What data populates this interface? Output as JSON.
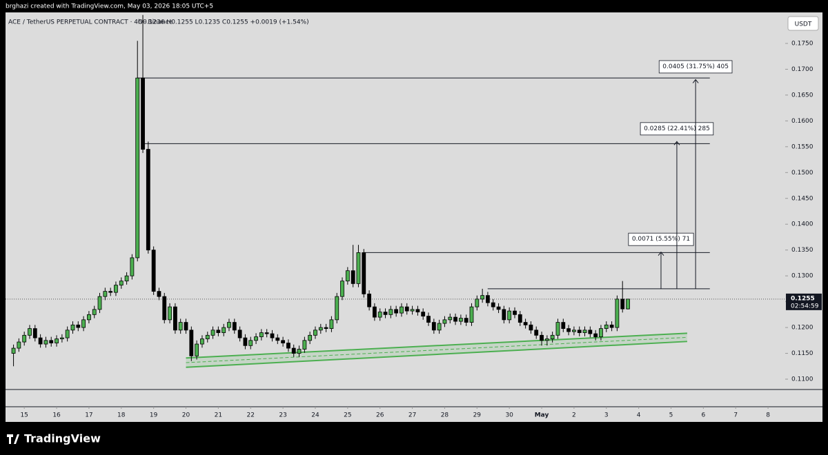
{
  "attribution": "brghazi created with TradingView.com, May 03, 2026 18:05 UTC+5",
  "logo": "TradingView",
  "chart_data": {
    "type": "candlestick",
    "title": "ACE / TetherUS PERPETUAL CONTRACT · 4h · Binance",
    "ohlc_text": "O0.1236 H0.1255 L0.1235 C0.1255 +0.0019 (+1.54%)",
    "currency": "USDT",
    "up_color": "#4caf50",
    "down_color": "#000000",
    "x": [
      14.667,
      14.833,
      15,
      15.167,
      15.333,
      15.5,
      15.667,
      15.833,
      16,
      16.167,
      16.333,
      16.5,
      16.667,
      16.833,
      17,
      17.167,
      17.333,
      17.5,
      17.667,
      17.833,
      18,
      18.167,
      18.333,
      18.5,
      18.667,
      18.833,
      19,
      19.167,
      19.333,
      19.5,
      19.667,
      19.833,
      20,
      20.167,
      20.333,
      20.5,
      20.667,
      20.833,
      21,
      21.167,
      21.333,
      21.5,
      21.667,
      21.833,
      22,
      22.167,
      22.333,
      22.5,
      22.667,
      22.833,
      23,
      23.167,
      23.333,
      23.5,
      23.667,
      23.833,
      24,
      24.167,
      24.333,
      24.5,
      24.667,
      24.833,
      25,
      25.167,
      25.333,
      25.5,
      25.667,
      25.833,
      26,
      26.167,
      26.333,
      26.5,
      26.667,
      26.833,
      27,
      27.167,
      27.333,
      27.5,
      27.667,
      27.833,
      28,
      28.167,
      28.333,
      28.5,
      28.667,
      28.833,
      29,
      29.167,
      29.333,
      29.5,
      29.667,
      29.833,
      30,
      30.167,
      30.333,
      30.5,
      30.667,
      30.833,
      31,
      31.167,
      31.333,
      31.5,
      31.667,
      31.833,
      32,
      32.167,
      32.333,
      32.5,
      32.667,
      32.833,
      33,
      33.167,
      33.333,
      33.5,
      33.667
    ],
    "open": [
      0.115,
      0.116,
      0.1172,
      0.1185,
      0.1198,
      0.118,
      0.1168,
      0.1175,
      0.117,
      0.1178,
      0.118,
      0.1195,
      0.1205,
      0.12,
      0.1215,
      0.1225,
      0.1235,
      0.126,
      0.127,
      0.1268,
      0.1282,
      0.129,
      0.13,
      0.1335,
      0.1683,
      0.1545,
      0.135,
      0.127,
      0.126,
      0.1215,
      0.124,
      0.1195,
      0.121,
      0.1195,
      0.1145,
      0.1168,
      0.1178,
      0.1185,
      0.1195,
      0.119,
      0.12,
      0.121,
      0.1195,
      0.118,
      0.1165,
      0.1175,
      0.1182,
      0.119,
      0.1188,
      0.118,
      0.1175,
      0.117,
      0.116,
      0.115,
      0.1158,
      0.1175,
      0.1185,
      0.1195,
      0.12,
      0.1198,
      0.1215,
      0.126,
      0.129,
      0.131,
      0.1285,
      0.1345,
      0.1265,
      0.124,
      0.122,
      0.123,
      0.1225,
      0.1235,
      0.1228,
      0.124,
      0.1232,
      0.1235,
      0.123,
      0.1222,
      0.121,
      0.1195,
      0.1208,
      0.1215,
      0.122,
      0.1212,
      0.1218,
      0.121,
      0.124,
      0.1255,
      0.1262,
      0.1248,
      0.124,
      0.1235,
      0.1215,
      0.1232,
      0.1225,
      0.121,
      0.1205,
      0.1195,
      0.1185,
      0.1175,
      0.1178,
      0.1185,
      0.121,
      0.1198,
      0.1192,
      0.1195,
      0.119,
      0.1195,
      0.1188,
      0.1182,
      0.1198,
      0.1205,
      0.12,
      0.1255,
      0.1236
    ],
    "high": [
      0.1167,
      0.1179,
      0.1192,
      0.1205,
      0.1205,
      0.1187,
      0.1182,
      0.1182,
      0.1185,
      0.1187,
      0.1202,
      0.1212,
      0.1212,
      0.1222,
      0.1232,
      0.1242,
      0.1267,
      0.1277,
      0.1277,
      0.1289,
      0.1297,
      0.1307,
      0.1342,
      0.1755,
      0.1805,
      0.156,
      0.1357,
      0.1277,
      0.1267,
      0.1247,
      0.1247,
      0.1217,
      0.1217,
      0.1202,
      0.1175,
      0.1185,
      0.1192,
      0.1202,
      0.1202,
      0.1207,
      0.1217,
      0.1217,
      0.1202,
      0.1187,
      0.1182,
      0.1189,
      0.1197,
      0.1197,
      0.1195,
      0.1187,
      0.1182,
      0.1177,
      0.1167,
      0.1165,
      0.1182,
      0.1192,
      0.1202,
      0.1207,
      0.1207,
      0.1222,
      0.1267,
      0.1297,
      0.1317,
      0.136,
      0.136,
      0.1352,
      0.1272,
      0.1247,
      0.1237,
      0.1237,
      0.1242,
      0.1242,
      0.1247,
      0.1247,
      0.1242,
      0.1242,
      0.1237,
      0.1229,
      0.1217,
      0.1215,
      0.1222,
      0.1227,
      0.1227,
      0.1225,
      0.1225,
      0.1247,
      0.1262,
      0.1275,
      0.1269,
      0.1255,
      0.1247,
      0.1242,
      0.1239,
      0.1239,
      0.1232,
      0.1217,
      0.1212,
      0.1202,
      0.1192,
      0.1185,
      0.1192,
      0.1217,
      0.1217,
      0.1205,
      0.1202,
      0.1202,
      0.1202,
      0.1202,
      0.1195,
      0.1205,
      0.1212,
      0.1212,
      0.1262,
      0.129,
      0.1255
    ],
    "low": [
      0.1125,
      0.1153,
      0.1165,
      0.1178,
      0.1173,
      0.1161,
      0.1161,
      0.1163,
      0.1163,
      0.1171,
      0.1173,
      0.1188,
      0.1193,
      0.1193,
      0.1208,
      0.1218,
      0.1228,
      0.1253,
      0.1261,
      0.1261,
      0.1275,
      0.1283,
      0.1293,
      0.1328,
      0.1538,
      0.1343,
      0.1263,
      0.1253,
      0.1208,
      0.1208,
      0.1188,
      0.1188,
      0.1188,
      0.1135,
      0.1138,
      0.1161,
      0.1171,
      0.1178,
      0.1183,
      0.1183,
      0.1193,
      0.1188,
      0.1173,
      0.1158,
      0.1158,
      0.1168,
      0.1175,
      0.1181,
      0.1173,
      0.1168,
      0.1163,
      0.1153,
      0.1143,
      0.1143,
      0.1151,
      0.1168,
      0.1178,
      0.1188,
      0.1191,
      0.1191,
      0.1208,
      0.1253,
      0.1283,
      0.1278,
      0.1278,
      0.1258,
      0.1233,
      0.1213,
      0.1213,
      0.1218,
      0.1218,
      0.1221,
      0.1221,
      0.1225,
      0.1225,
      0.1223,
      0.1215,
      0.1203,
      0.1188,
      0.1188,
      0.1201,
      0.1208,
      0.1205,
      0.1205,
      0.1203,
      0.1203,
      0.1233,
      0.1248,
      0.1241,
      0.1233,
      0.1228,
      0.1208,
      0.1208,
      0.1218,
      0.1203,
      0.1198,
      0.1188,
      0.1178,
      0.1165,
      0.1165,
      0.1171,
      0.1178,
      0.1191,
      0.1185,
      0.1185,
      0.1183,
      0.1183,
      0.1181,
      0.1175,
      0.1175,
      0.1191,
      0.1193,
      0.1193,
      0.1229,
      0.1235
    ],
    "close": [
      0.116,
      0.1172,
      0.1185,
      0.1198,
      0.118,
      0.1168,
      0.1175,
      0.117,
      0.1178,
      0.118,
      0.1195,
      0.1205,
      0.12,
      0.1215,
      0.1225,
      0.1235,
      0.126,
      0.127,
      0.1268,
      0.1282,
      0.129,
      0.13,
      0.1335,
      0.1683,
      0.1545,
      0.135,
      0.127,
      0.126,
      0.1215,
      0.124,
      0.1195,
      0.121,
      0.1195,
      0.1145,
      0.1168,
      0.1178,
      0.1185,
      0.1195,
      0.119,
      0.12,
      0.121,
      0.1195,
      0.118,
      0.1165,
      0.1175,
      0.1182,
      0.119,
      0.1188,
      0.118,
      0.1175,
      0.117,
      0.116,
      0.115,
      0.1158,
      0.1175,
      0.1185,
      0.1195,
      0.12,
      0.1198,
      0.1215,
      0.126,
      0.129,
      0.131,
      0.1285,
      0.1345,
      0.1265,
      0.124,
      0.122,
      0.123,
      0.1225,
      0.1235,
      0.1228,
      0.124,
      0.1232,
      0.1235,
      0.123,
      0.1222,
      0.121,
      0.1195,
      0.1208,
      0.1215,
      0.122,
      0.1212,
      0.1218,
      0.121,
      0.124,
      0.1255,
      0.1262,
      0.1248,
      0.124,
      0.1235,
      0.1215,
      0.1232,
      0.1225,
      0.121,
      0.1205,
      0.1195,
      0.1185,
      0.1175,
      0.1178,
      0.1185,
      0.121,
      0.1198,
      0.1192,
      0.1195,
      0.119,
      0.1195,
      0.1188,
      0.1182,
      0.1198,
      0.1205,
      0.12,
      0.1255,
      0.1236,
      0.1255
    ],
    "xlim": [
      14.42,
      38.51
    ],
    "xticks": [
      15,
      16,
      17,
      18,
      19,
      20,
      21,
      22,
      23,
      24,
      25,
      26,
      27,
      28,
      29,
      30,
      {
        "value": 31,
        "label": "May"
      },
      {
        "value": 32,
        "label": "2"
      },
      {
        "value": 33,
        "label": "3"
      },
      {
        "value": 34,
        "label": "4"
      },
      {
        "value": 35,
        "label": "5"
      },
      {
        "value": 36,
        "label": "6"
      },
      {
        "value": 37,
        "label": "7"
      },
      {
        "value": 38,
        "label": "8"
      }
    ],
    "ylim": [
      0.108,
      0.181
    ],
    "yticks": [
      {
        "value": 0.11,
        "label": "0.1100"
      },
      {
        "value": 0.115,
        "label": "0.1150"
      },
      {
        "value": 0.12,
        "label": "0.1200"
      },
      {
        "value": 0.125,
        "label": "0.1250"
      },
      {
        "value": 0.13,
        "label": "0.1300"
      },
      {
        "value": 0.135,
        "label": "0.1350"
      },
      {
        "value": 0.14,
        "label": "0.1400"
      },
      {
        "value": 0.145,
        "label": "0.1450"
      },
      {
        "value": 0.15,
        "label": "0.1500"
      },
      {
        "value": 0.155,
        "label": "0.1550"
      },
      {
        "value": 0.16,
        "label": "0.1600"
      },
      {
        "value": 0.165,
        "label": "0.1650"
      },
      {
        "value": 0.17,
        "label": "0.1700"
      },
      {
        "value": 0.175,
        "label": "0.1750"
      }
    ],
    "last_price": {
      "value": 0.1255,
      "label": "0.1255"
    },
    "countdown": "02:54:59",
    "levels": [
      {
        "value": 0.1275,
        "x": [
          29.33,
          36.2
        ]
      },
      {
        "value": 0.1345,
        "x": [
          25.5,
          36.2
        ]
      },
      {
        "value": 0.1556,
        "x": [
          18.67,
          36.2
        ]
      },
      {
        "value": 0.1683,
        "x": [
          18.5,
          36.2
        ]
      }
    ],
    "measures": [
      {
        "label": "0.0071 (5.55%) 71",
        "x": 34.69,
        "from": 0.1275,
        "to": 0.1346
      },
      {
        "label": "0.0285 (22.41%) 285",
        "x": 35.18,
        "from": 0.1275,
        "to": 0.156
      },
      {
        "label": "0.0405 (31.75%) 405",
        "x": 35.76,
        "from": 0.1275,
        "to": 0.168
      }
    ],
    "channel": {
      "x": [
        20,
        35.5
      ],
      "upper": [
        0.1141,
        0.1189
      ],
      "lower": [
        0.1123,
        0.1173
      ],
      "color": "#4caf50"
    }
  }
}
